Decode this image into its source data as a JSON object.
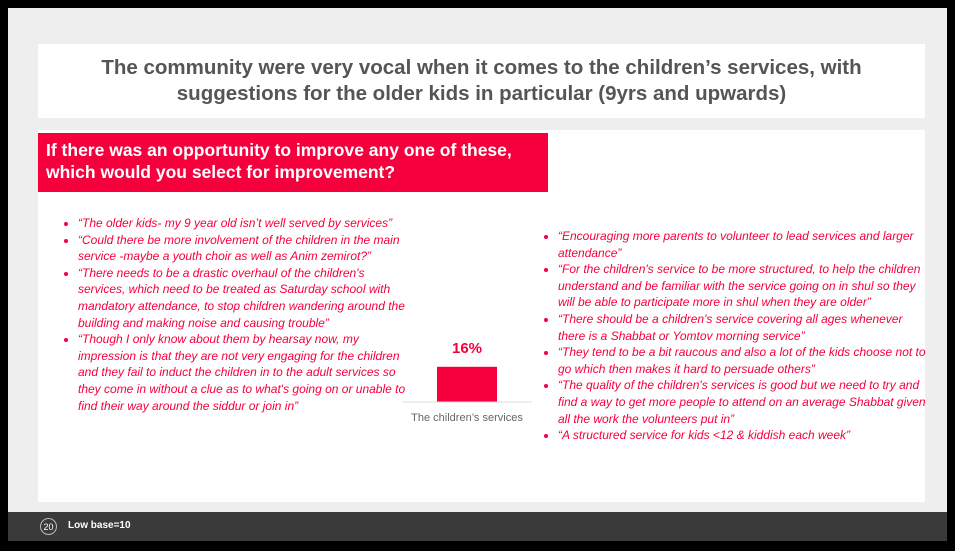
{
  "title": "The community were very vocal when it comes to the children’s services, with suggestions for the older kids in particular (9yrs and upwards)",
  "question": "If there was an opportunity to improve any one of these, which would you select for improvement?",
  "left_quotes": [
    "“The older kids- my 9 year old isn’t well served by services”",
    "“Could there be more involvement of the children in the main service -maybe a youth choir as well as Anim zemirot?”",
    "“There needs to be a drastic overhaul of the children's services, which need to be treated as Saturday school with mandatory attendance, to stop children wandering around the building and making noise and causing trouble”",
    "“Though I only know about them by hearsay now, my impression is that they are not very engaging for the children and they fail to induct the children in to the adult services so they come in without a clue as to what's going on or unable to find their way around the siddur or join in”"
  ],
  "right_quotes": [
    "“Encouraging more parents to volunteer to lead services and larger attendance”",
    "“For the children's service to be more structured, to help the children understand and be familiar with the service going on in shul so they will be able to participate more in shul when they are older”",
    "“There should be a children's service covering all ages whenever there is a Shabbat or Yomtov morning service”",
    "“They tend to be a bit raucous and also a lot of the kids choose not to go which then makes it hard to persuade others”",
    "“The quality of the children's services is good but we need to try and find a way to get more people to attend on an average Shabbat given all the work the volunteers put in”",
    "“A structured service for kids <12 & kiddish each week”"
  ],
  "chart_data": {
    "type": "bar",
    "categories": [
      "The children’s services"
    ],
    "values": [
      16
    ],
    "value_labels": [
      "16%"
    ],
    "color": "#f5003d"
  },
  "footer": {
    "page": "20",
    "note": "Low base=10"
  }
}
